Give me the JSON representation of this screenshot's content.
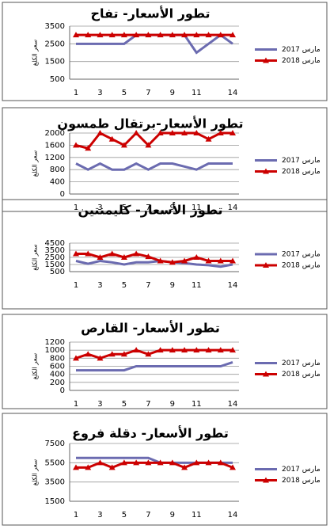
{
  "chart_data": [
    {
      "type": "line",
      "title": "تطور الأسعار- تفاح",
      "y_label": "سعر الكلغ",
      "categories": [
        1,
        null,
        3,
        null,
        5,
        null,
        7,
        null,
        9,
        null,
        11,
        null,
        null,
        14
      ],
      "series": [
        {
          "name": "مارس 2017",
          "color": "#6b6bb0",
          "values": [
            2500,
            2500,
            2500,
            2500,
            2500,
            3000,
            3000,
            3000,
            3000,
            3000,
            2000,
            2500,
            3000,
            2500
          ]
        },
        {
          "name": "مارس 2018",
          "color": "#cc0000",
          "marker": "triangle",
          "values": [
            3000,
            3000,
            3000,
            3000,
            3000,
            3000,
            3000,
            3000,
            3000,
            3000,
            3000,
            3000,
            3000,
            3000
          ]
        }
      ],
      "ylim": [
        500,
        3500
      ],
      "yticks": [
        500,
        1500,
        2500,
        3500
      ],
      "grid": true
    },
    {
      "type": "line",
      "title": "تطور الأسعار-برتقال طمسون",
      "y_label": "سعر الكلغ",
      "categories": [
        1,
        null,
        3,
        null,
        5,
        null,
        7,
        null,
        9,
        null,
        11,
        null,
        null,
        14
      ],
      "series": [
        {
          "name": "مارس 2017",
          "color": "#6b6bb0",
          "values": [
            1000,
            800,
            1000,
            800,
            800,
            1000,
            800,
            1000,
            1000,
            900,
            800,
            1000,
            1000,
            1000
          ]
        },
        {
          "name": "مارس 2018",
          "color": "#cc0000",
          "marker": "triangle",
          "values": [
            1600,
            1500,
            2000,
            1800,
            1600,
            2000,
            1600,
            2000,
            2000,
            2000,
            2000,
            1800,
            2000,
            2000
          ]
        }
      ],
      "ylim": [
        0,
        2000
      ],
      "yticks": [
        0,
        400,
        800,
        1200,
        1600,
        2000
      ],
      "grid": true
    },
    {
      "type": "line",
      "title": "تطور الأسعار- كليمنتين",
      "y_label": "سعر الكلغ",
      "categories": [
        1,
        null,
        3,
        null,
        5,
        null,
        7,
        null,
        9,
        null,
        11,
        null,
        null,
        14
      ],
      "series": [
        {
          "name": "مارس 2017",
          "color": "#6b6bb0",
          "values": [
            2000,
            1600,
            2000,
            1800,
            1500,
            1800,
            1800,
            2000,
            1800,
            1700,
            1500,
            1400,
            1200,
            1500
          ]
        },
        {
          "name": "مارس 2018",
          "color": "#cc0000",
          "marker": "triangle",
          "values": [
            3000,
            3000,
            2500,
            3000,
            2500,
            3000,
            2600,
            2000,
            1800,
            2000,
            2500,
            2000,
            2000,
            2000
          ]
        }
      ],
      "ylim": [
        500,
        4500
      ],
      "yticks": [
        500,
        1500,
        2500,
        3500,
        4500
      ],
      "grid": true
    },
    {
      "type": "line",
      "title": "تطور الأسعار- القارص",
      "y_label": "سعر الكلغ",
      "categories": [
        1,
        null,
        3,
        null,
        5,
        null,
        7,
        null,
        9,
        null,
        11,
        null,
        null,
        14
      ],
      "series": [
        {
          "name": "مارس 2017",
          "color": "#6b6bb0",
          "values": [
            500,
            500,
            500,
            500,
            500,
            600,
            600,
            600,
            600,
            600,
            600,
            600,
            600,
            700
          ]
        },
        {
          "name": "مارس 2018",
          "color": "#cc0000",
          "marker": "triangle",
          "values": [
            800,
            900,
            800,
            900,
            900,
            1000,
            900,
            1000,
            1000,
            1000,
            1000,
            1000,
            1000,
            1000
          ]
        }
      ],
      "ylim": [
        0,
        1200
      ],
      "yticks": [
        0,
        200,
        400,
        600,
        800,
        1000,
        1200
      ],
      "grid": true
    },
    {
      "type": "line",
      "title": "تطور الأسعار- دقلة فروع",
      "y_label": "سعر الكلغ",
      "categories": [
        1,
        null,
        3,
        null,
        5,
        null,
        7,
        null,
        9,
        null,
        11,
        null,
        null,
        14
      ],
      "series": [
        {
          "name": "مارس 2017",
          "color": "#6b6bb0",
          "values": [
            6000,
            6000,
            6000,
            6000,
            6000,
            6000,
            6000,
            5500,
            5500,
            5500,
            5500,
            5500,
            5500,
            5500
          ]
        },
        {
          "name": "مارس 2018",
          "color": "#cc0000",
          "marker": "triangle",
          "values": [
            5000,
            5000,
            5500,
            5000,
            5500,
            5500,
            5500,
            5500,
            5500,
            5000,
            5500,
            5500,
            5500,
            5000
          ]
        }
      ],
      "ylim": [
        1500,
        7500
      ],
      "yticks": [
        1500,
        3500,
        5500,
        7500
      ],
      "grid": true
    }
  ]
}
